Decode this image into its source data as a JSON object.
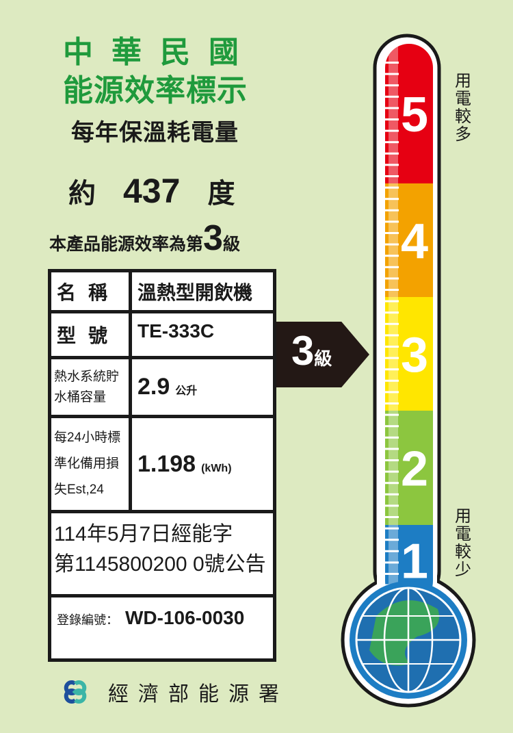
{
  "header": {
    "line1": "中華民國",
    "line2": "能源效率標示",
    "subtitle": "每年保溫耗電量"
  },
  "usage": {
    "prefix": "約",
    "value": "437",
    "unit": "度"
  },
  "grade": {
    "text": "本產品能源效率為第",
    "level": "3",
    "suffix": "級"
  },
  "table": {
    "name_label": "名稱",
    "name_value": "溫熱型開飲機",
    "model_label": "型號",
    "model_value": "TE-333C",
    "capacity_label": "熱水系統貯水桶容量",
    "capacity_value": "2.9",
    "capacity_unit": "公升",
    "standby_label_1": "每24小時標",
    "standby_label_2": "準化備用損",
    "standby_label_3": "失Est,24",
    "standby_value": "1.198",
    "standby_unit": "(kWh)",
    "notice_1": "114年5月7日經能字",
    "notice_2": "第1145800200 0號公告",
    "reg_label": "登錄編號：",
    "reg_value": "WD-106-0030"
  },
  "arrow": {
    "level": "3",
    "suffix": "級"
  },
  "thermometer": {
    "levels": [
      "5",
      "4",
      "3",
      "2",
      "1"
    ],
    "current": 3,
    "colors": [
      "#e60012",
      "#f3a200",
      "#ffe600",
      "#8cc63f",
      "#1d7dc4"
    ],
    "top_label": "用電較多",
    "bottom_label": "用電較少"
  },
  "footer": {
    "agency": "經濟部能源署",
    "logo_colors": [
      "#1e4f9c",
      "#3bb5a7"
    ]
  }
}
